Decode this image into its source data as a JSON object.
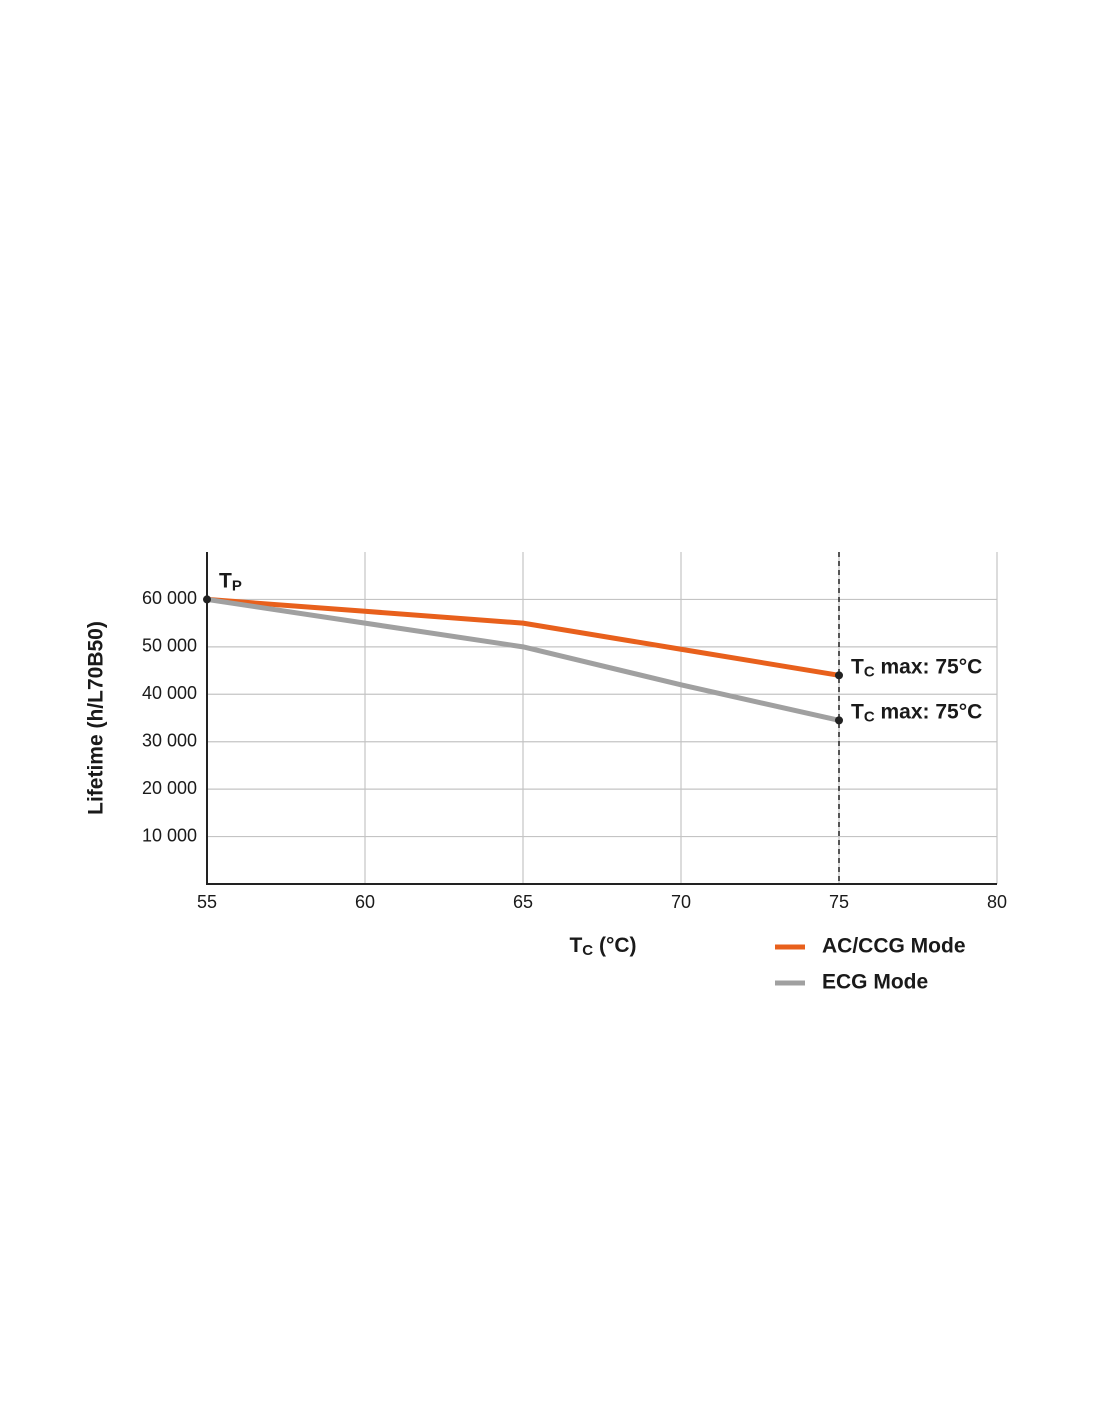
{
  "chart_data": {
    "type": "line",
    "y_label": "Lifetime (h/L70B50)",
    "x_label": {
      "base": "T",
      "sub": "C",
      "rest": " (°C)"
    },
    "x": [
      55,
      60,
      65,
      70,
      75
    ],
    "series": [
      {
        "name": "AC/CCG Mode",
        "color": "#e8601c",
        "values": [
          60000,
          57500,
          55000,
          49500,
          44000
        ]
      },
      {
        "name": "ECG Mode",
        "color": "#a0a0a0",
        "values": [
          60000,
          55000,
          50000,
          42000,
          34500
        ]
      }
    ],
    "xlim": [
      55,
      80
    ],
    "xticks": [
      55,
      60,
      65,
      70,
      75,
      80
    ],
    "ylim": [
      0,
      70000
    ],
    "yticks": [
      {
        "value": 10000,
        "label": "10 000"
      },
      {
        "value": 20000,
        "label": "20 000"
      },
      {
        "value": 30000,
        "label": "30 000"
      },
      {
        "value": 40000,
        "label": "40 000"
      },
      {
        "value": 50000,
        "label": "50 000"
      },
      {
        "value": 60000,
        "label": "60 000"
      }
    ],
    "grid": true,
    "vline": 75,
    "annotations": [
      {
        "base": "T",
        "sub": "P",
        "rest": ""
      },
      {
        "base": "T",
        "sub": "C",
        "rest": " max: 75°C"
      },
      {
        "base": "T",
        "sub": "C",
        "rest": " max: 75°C"
      }
    ],
    "legend": "bottom-right"
  }
}
